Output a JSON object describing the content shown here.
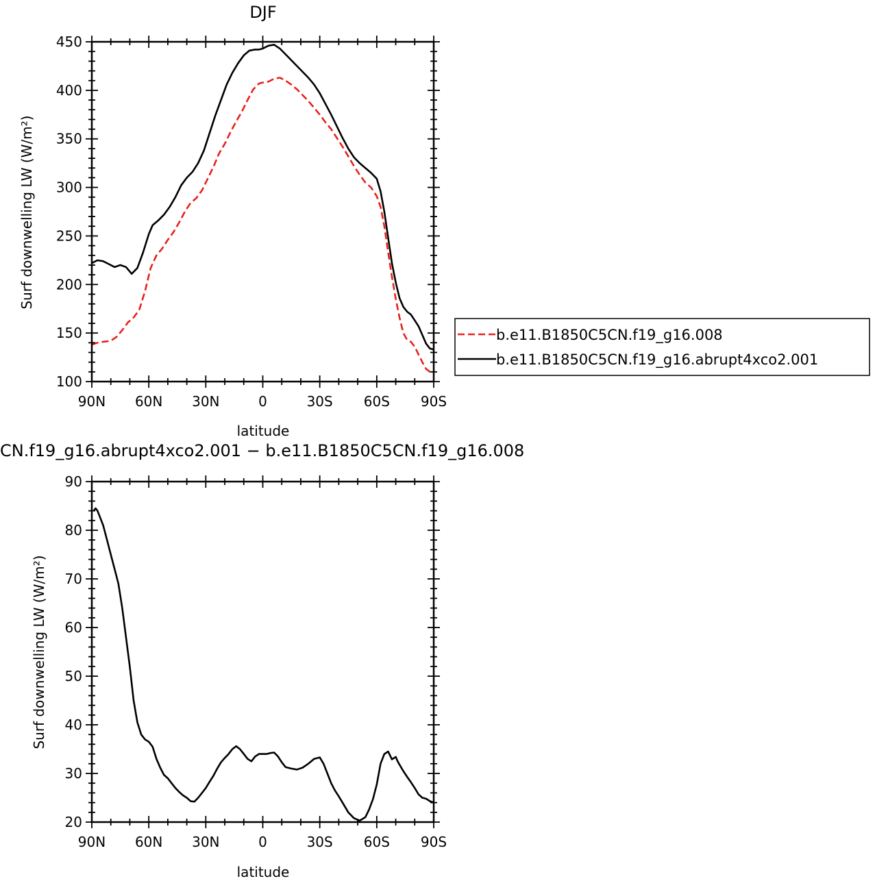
{
  "chart_data": [
    {
      "type": "line",
      "title": "DJF",
      "xlabel": "latitude",
      "ylabel": "Surf  downwelling LW (W/m²)",
      "ylim": [
        100,
        450
      ],
      "xlim": [
        90,
        -90
      ],
      "x_ticks": [
        90,
        60,
        30,
        0,
        -30,
        -60,
        -90
      ],
      "x_tick_labels": [
        "90N",
        "60N",
        "30N",
        "0",
        "30S",
        "60S",
        "90S"
      ],
      "y_ticks": [
        100,
        150,
        200,
        250,
        300,
        350,
        400,
        450
      ],
      "y_tick_labels": [
        "100",
        "150",
        "200",
        "250",
        "300",
        "350",
        "400",
        "450"
      ],
      "legend_position": "right",
      "series": [
        {
          "name": "b.e11.B1850C5CN.f19_g16.008",
          "color": "#e8201c",
          "dash": "dashed",
          "x": [
            90,
            87,
            84,
            80,
            77,
            74,
            71,
            68,
            65,
            62,
            59,
            56,
            53,
            50,
            47,
            44,
            41,
            38,
            35,
            32,
            29,
            26,
            23,
            20,
            17,
            14,
            11,
            8,
            5,
            2,
            0,
            -3,
            -6,
            -9,
            -12,
            -15,
            -18,
            -21,
            -24,
            -27,
            -30,
            -33,
            -36,
            -39,
            -42,
            -45,
            -48,
            -51,
            -54,
            -57,
            -60,
            -62,
            -64,
            -66,
            -68,
            -70,
            -72,
            -74,
            -76,
            -78,
            -80,
            -82,
            -84,
            -86,
            -88,
            -90
          ],
          "y": [
            138,
            140,
            141,
            142,
            146,
            153,
            161,
            166,
            174,
            193,
            217,
            230,
            237,
            246,
            254,
            264,
            275,
            284,
            289,
            297,
            309,
            321,
            335,
            345,
            357,
            368,
            378,
            390,
            401,
            407,
            408,
            409,
            412,
            413,
            410,
            406,
            401,
            395,
            389,
            382,
            375,
            367,
            360,
            351,
            342,
            332,
            322,
            313,
            305,
            300,
            291,
            280,
            260,
            233,
            208,
            185,
            166,
            150,
            143,
            141,
            136,
            128,
            120,
            113,
            110,
            109
          ]
        },
        {
          "name": "b.e11.B1850C5CN.f19_g16.abrupt4xco2.001",
          "color": "#000000",
          "dash": "solid",
          "x": [
            90,
            87,
            84,
            81,
            78,
            75,
            72,
            69,
            66,
            63,
            60,
            58,
            55,
            52,
            49,
            46,
            43,
            40,
            37,
            34,
            31,
            28,
            25,
            22,
            19,
            16,
            13,
            10,
            7,
            4,
            2,
            0,
            -3,
            -6,
            -9,
            -12,
            -15,
            -18,
            -21,
            -24,
            -27,
            -30,
            -33,
            -36,
            -39,
            -42,
            -45,
            -48,
            -51,
            -54,
            -57,
            -60,
            -62,
            -64,
            -66,
            -68,
            -70,
            -72,
            -74,
            -76,
            -78,
            -80,
            -82,
            -84,
            -86,
            -88,
            -90
          ],
          "y": [
            222,
            225,
            224,
            221,
            218,
            220,
            218,
            211,
            217,
            233,
            252,
            261,
            266,
            272,
            280,
            290,
            302,
            310,
            316,
            325,
            338,
            356,
            374,
            390,
            406,
            418,
            428,
            436,
            441,
            442,
            442,
            443,
            446,
            447,
            443,
            437,
            431,
            425,
            419,
            413,
            406,
            397,
            386,
            375,
            363,
            351,
            340,
            331,
            325,
            320,
            315,
            309,
            296,
            275,
            248,
            222,
            202,
            186,
            177,
            172,
            169,
            163,
            157,
            148,
            139,
            134,
            133
          ]
        }
      ]
    },
    {
      "type": "line",
      "title": "CN.f19_g16.abrupt4xco2.001 − b.e11.B1850C5CN.f19_g16.008",
      "xlabel": "latitude",
      "ylabel": "Surf  downwelling LW (W/m²)",
      "ylim": [
        20,
        90
      ],
      "xlim": [
        90,
        -90
      ],
      "x_ticks": [
        90,
        60,
        30,
        0,
        -30,
        -60,
        -90
      ],
      "x_tick_labels": [
        "90N",
        "60N",
        "30N",
        "0",
        "30S",
        "60S",
        "90S"
      ],
      "y_ticks": [
        20,
        30,
        40,
        50,
        60,
        70,
        80,
        90
      ],
      "y_tick_labels": [
        "20",
        "30",
        "40",
        "50",
        "60",
        "70",
        "80",
        "90"
      ],
      "series": [
        {
          "color": "#000000",
          "dash": "solid",
          "x": [
            89,
            88,
            87,
            86,
            84,
            82,
            80,
            78,
            76,
            74,
            72,
            70,
            68,
            66,
            64,
            62,
            60,
            58,
            56,
            54,
            52,
            50,
            48,
            46,
            44,
            42,
            40,
            38,
            36,
            34,
            32,
            30,
            28,
            26,
            24,
            22,
            20,
            18,
            16,
            14,
            12,
            10,
            8,
            6,
            4,
            2,
            0,
            -2,
            -4,
            -6,
            -8,
            -10,
            -12,
            -15,
            -18,
            -21,
            -24,
            -27,
            -30,
            -32,
            -34,
            -36,
            -38,
            -40,
            -42,
            -45,
            -48,
            -51,
            -54,
            -56,
            -58,
            -60,
            -62,
            -64,
            -66,
            -68,
            -70,
            -71,
            -72,
            -74,
            -76,
            -78,
            -80,
            -82,
            -84,
            -86,
            -88,
            -90
          ],
          "y": [
            84,
            84.5,
            84,
            83,
            81,
            78,
            75,
            72,
            69,
            64,
            58,
            52,
            45,
            40.5,
            38,
            37,
            36.5,
            35.5,
            33,
            31.2,
            29.7,
            29,
            28,
            27,
            26.2,
            25.5,
            25,
            24.3,
            24.2,
            25,
            26,
            27,
            28.3,
            29.5,
            31,
            32.3,
            33.2,
            34,
            35,
            35.6,
            35,
            34,
            33,
            32.5,
            33.5,
            34,
            34,
            34,
            34.2,
            34.3,
            33.5,
            32.3,
            31.3,
            31,
            30.8,
            31.2,
            32,
            33,
            33.3,
            32,
            30,
            28,
            26.5,
            25.3,
            24,
            22,
            20.8,
            20.3,
            21,
            22.6,
            24.7,
            27.7,
            32,
            34,
            34.5,
            32.9,
            33.4,
            32.5,
            31.8,
            30.5,
            29.3,
            28.2,
            27,
            25.7,
            25,
            24.8,
            24.3,
            24
          ]
        }
      ]
    }
  ]
}
